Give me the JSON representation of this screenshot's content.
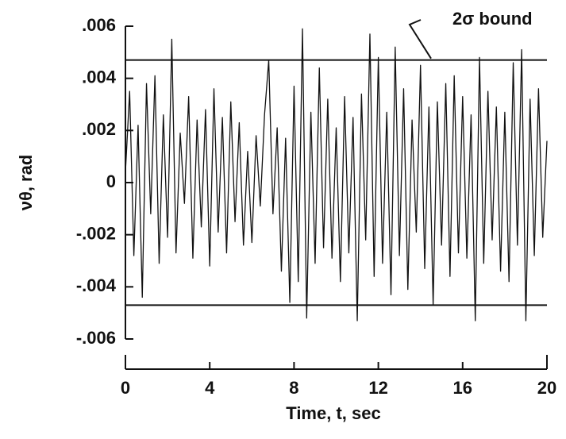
{
  "chart_data": {
    "type": "line",
    "xlabel": "Time, t, sec",
    "ylabel": "νθ, rad",
    "xlim": [
      0,
      20
    ],
    "xticks": [
      0,
      4,
      8,
      12,
      16,
      20
    ],
    "ylim": [
      -0.006,
      0.006
    ],
    "yticks": [
      {
        "value": 0.006,
        "label": ".006"
      },
      {
        "value": 0.004,
        "label": ".004"
      },
      {
        "value": 0.002,
        "label": ".002"
      },
      0,
      {
        "value": -0.002,
        "label": "-.002"
      },
      {
        "value": -0.004,
        "label": "-.004"
      },
      {
        "value": -0.006,
        "label": "-.006"
      }
    ],
    "bounds": {
      "label": "2σ bound",
      "values": [
        0.0047,
        -0.0047
      ]
    },
    "x": [
      0,
      0.2,
      0.4,
      0.6,
      0.8,
      1,
      1.2,
      1.4,
      1.6,
      1.8,
      2,
      2.2,
      2.4,
      2.6,
      2.8,
      3,
      3.2,
      3.4,
      3.6,
      3.8,
      4,
      4.2,
      4.4,
      4.6,
      4.8,
      5,
      5.2,
      5.4,
      5.6,
      5.8,
      6,
      6.2,
      6.4,
      6.6,
      6.8,
      7,
      7.2,
      7.4,
      7.6,
      7.8,
      8,
      8.2,
      8.4,
      8.6,
      8.8,
      9,
      9.2,
      9.4,
      9.6,
      9.8,
      10,
      10.2,
      10.4,
      10.6,
      10.8,
      11,
      11.2,
      11.4,
      11.6,
      11.8,
      12,
      12.2,
      12.4,
      12.6,
      12.8,
      13,
      13.2,
      13.4,
      13.6,
      13.8,
      14,
      14.2,
      14.4,
      14.6,
      14.8,
      15,
      15.2,
      15.4,
      15.6,
      15.8,
      16,
      16.2,
      16.4,
      16.6,
      16.8,
      17,
      17.2,
      17.4,
      17.6,
      17.8,
      18,
      18.2,
      18.4,
      18.6,
      18.8,
      19,
      19.2,
      19.4,
      19.6,
      19.8,
      20
    ],
    "series": [
      {
        "color": "#111111",
        "values": [
          0.0004,
          0.0035,
          -0.0028,
          0.0022,
          -0.0044,
          0.0038,
          -0.0012,
          0.0041,
          -0.0031,
          0.0026,
          -0.0021,
          0.0055,
          -0.0027,
          0.0019,
          -0.0008,
          0.0033,
          -0.0029,
          0.0024,
          -0.0017,
          0.0028,
          -0.0032,
          0.0036,
          -0.0019,
          0.0025,
          -0.0027,
          0.0031,
          -0.0015,
          0.0023,
          -0.0024,
          0.0012,
          -0.0023,
          0.0018,
          -0.0009,
          0.0026,
          0.0047,
          -0.0012,
          0.0021,
          -0.0034,
          0.0017,
          -0.0046,
          0.0037,
          -0.0038,
          0.0059,
          -0.0052,
          0.0027,
          -0.0031,
          0.0044,
          -0.0025,
          0.0032,
          -0.0029,
          0.0021,
          -0.0038,
          0.0033,
          -0.0027,
          0.0025,
          -0.0053,
          0.0034,
          -0.0022,
          0.0057,
          -0.0036,
          0.0048,
          -0.0031,
          0.0027,
          -0.0043,
          0.0052,
          -0.0028,
          0.0036,
          -0.0041,
          0.0024,
          -0.0019,
          0.0045,
          -0.0033,
          0.0029,
          -0.0047,
          0.0031,
          -0.0024,
          0.0038,
          -0.0036,
          0.0041,
          -0.0027,
          0.0033,
          -0.0029,
          0.0026,
          -0.0053,
          0.0048,
          -0.0031,
          0.0035,
          -0.0022,
          0.0029,
          -0.0034,
          0.0027,
          -0.0038,
          0.0046,
          -0.0024,
          0.0051,
          -0.0053,
          0.0032,
          -0.0028,
          0.0036,
          -0.0021,
          0.0016
        ]
      }
    ]
  }
}
